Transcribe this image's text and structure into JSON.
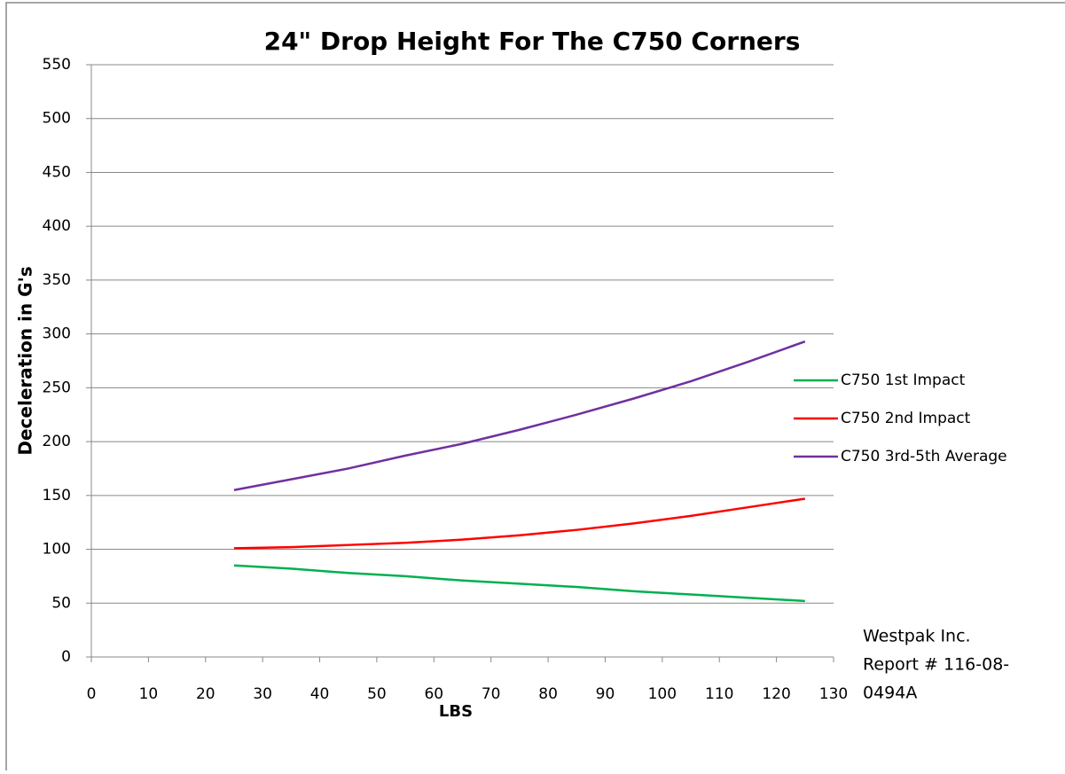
{
  "chart_data": {
    "type": "line",
    "title": "24\" Drop Height For The C750 Corners",
    "x_label": "LBS",
    "y_label": "Deceleration in G's",
    "annotation_lines": [
      "Westpak Inc.",
      "Report # 116-08-",
      "0494A"
    ],
    "x": [
      25,
      35,
      45,
      55,
      65,
      75,
      85,
      95,
      105,
      115,
      125
    ],
    "series": [
      {
        "name": "C750 1st Impact",
        "color": "#00b050",
        "values": [
          85,
          82,
          78,
          75,
          71,
          68,
          65,
          61,
          58,
          55,
          52
        ]
      },
      {
        "name": "C750 2nd Impact",
        "color": "#ff0000",
        "values": [
          101,
          102,
          104,
          106,
          109,
          113,
          118,
          124,
          131,
          139,
          147
        ]
      },
      {
        "name": "C750 3rd-5th Average",
        "color": "#7030a0",
        "values": [
          155,
          165,
          175,
          187,
          198,
          211,
          225,
          240,
          256,
          274,
          293
        ]
      }
    ],
    "xlim": [
      0,
      130
    ],
    "xticks": [
      0,
      10,
      20,
      30,
      40,
      50,
      60,
      70,
      80,
      90,
      100,
      110,
      120,
      130
    ],
    "ylim": [
      0,
      550
    ],
    "yticks": [
      0,
      50,
      100,
      150,
      200,
      250,
      300,
      350,
      400,
      450,
      500,
      550
    ],
    "grid": true,
    "legend": "right"
  }
}
